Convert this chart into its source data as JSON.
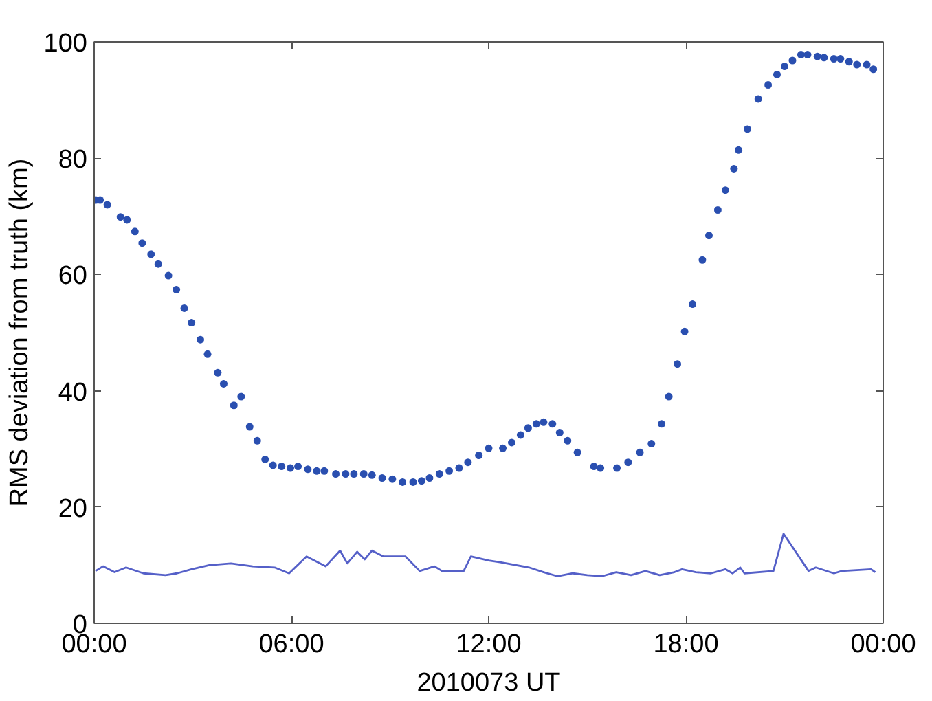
{
  "chart_data": {
    "type": "line",
    "xlabel": "2010073 UT",
    "ylabel": "RMS deviation from truth (km)",
    "xlim": [
      0,
      24
    ],
    "ylim": [
      0,
      100
    ],
    "xticks": [
      {
        "value": 0,
        "label": "00:00"
      },
      {
        "value": 6,
        "label": "06:00"
      },
      {
        "value": 12,
        "label": "12:00"
      },
      {
        "value": 18,
        "label": "18:00"
      },
      {
        "value": 24,
        "label": "00:00"
      }
    ],
    "yticks": [
      0,
      20,
      40,
      60,
      80,
      100
    ],
    "grid": false,
    "series": [
      {
        "type": "scatter",
        "marker": "circle",
        "color": "#2a4fb0",
        "x": [
          0.05,
          0.18,
          0.4,
          0.8,
          1.0,
          1.24,
          1.46,
          1.73,
          1.95,
          2.26,
          2.5,
          2.74,
          2.96,
          3.23,
          3.45,
          3.76,
          3.94,
          4.25,
          4.47,
          4.73,
          4.96,
          5.2,
          5.44,
          5.7,
          5.97,
          6.2,
          6.5,
          6.77,
          7.0,
          7.35,
          7.65,
          7.9,
          8.2,
          8.45,
          8.76,
          9.07,
          9.38,
          9.7,
          9.96,
          10.2,
          10.5,
          10.8,
          11.1,
          11.37,
          11.7,
          12.0,
          12.43,
          12.7,
          12.97,
          13.2,
          13.45,
          13.67,
          13.94,
          14.16,
          14.4,
          14.7,
          15.2,
          15.4,
          15.9,
          16.24,
          16.6,
          16.95,
          17.26,
          17.48,
          17.74,
          17.96,
          18.2,
          18.5,
          18.7,
          18.97,
          19.2,
          19.46,
          19.6,
          19.87,
          20.2,
          20.5,
          20.77,
          21.0,
          21.24,
          21.5,
          21.7,
          22.0,
          22.2,
          22.5,
          22.7,
          22.96,
          23.2,
          23.5,
          23.7
        ],
        "values": [
          72.8,
          72.8,
          72,
          69.9,
          69.4,
          67.4,
          65.4,
          63.5,
          61.8,
          59.8,
          57.4,
          54.2,
          51.7,
          48.8,
          46.3,
          43.1,
          41.2,
          37.5,
          39,
          33.8,
          31.4,
          28.2,
          27.2,
          27,
          26.7,
          27,
          26.5,
          26.2,
          26.2,
          25.7,
          25.7,
          25.7,
          25.7,
          25.5,
          25,
          24.8,
          24.3,
          24.3,
          24.5,
          25,
          25.7,
          26.2,
          26.7,
          27.7,
          28.9,
          30.1,
          30.1,
          31.1,
          32.4,
          33.6,
          34.3,
          34.6,
          34.3,
          32.8,
          31.4,
          29.4,
          27,
          26.7,
          26.7,
          27.7,
          29.4,
          30.9,
          34.3,
          39,
          44.6,
          50.2,
          54.9,
          62.5,
          66.7,
          71.1,
          74.5,
          78.2,
          81.4,
          85,
          90.2,
          92.6,
          94.4,
          95.8,
          96.8,
          97.8,
          97.8,
          97.5,
          97.3,
          97.1,
          97.1,
          96.6,
          96.1,
          96.1,
          95.3
        ]
      },
      {
        "line_style": "solid",
        "color": "#5560c8",
        "x": [
          0.04,
          0.27,
          0.62,
          0.97,
          1.5,
          2.17,
          2.52,
          2.96,
          3.5,
          4.16,
          4.82,
          5.49,
          5.93,
          6.46,
          7.04,
          7.48,
          7.7,
          8.0,
          8.23,
          8.45,
          8.8,
          9.47,
          9.9,
          10.35,
          10.58,
          11.24,
          11.46,
          12.0,
          12.35,
          13.23,
          13.67,
          14.1,
          14.56,
          15.0,
          15.44,
          15.88,
          16.33,
          16.77,
          17.2,
          17.65,
          17.88,
          18.3,
          18.76,
          19.2,
          19.42,
          19.65,
          19.78,
          20.66,
          20.97,
          21.73,
          21.95,
          22.5,
          22.74,
          23.63,
          23.76
        ],
        "values": [
          9,
          9.8,
          8.8,
          9.6,
          8.6,
          8.3,
          8.6,
          9.3,
          10,
          10.3,
          9.8,
          9.6,
          8.6,
          11.5,
          9.8,
          12.5,
          10.3,
          12.3,
          11,
          12.5,
          11.5,
          11.5,
          9,
          9.8,
          9,
          9,
          11.5,
          10.8,
          10.5,
          9.6,
          8.8,
          8.1,
          8.6,
          8.3,
          8.1,
          8.8,
          8.3,
          9,
          8.3,
          8.8,
          9.3,
          8.8,
          8.6,
          9.3,
          8.6,
          9.6,
          8.6,
          9,
          15.4,
          9,
          9.6,
          8.6,
          9,
          9.3,
          8.8
        ]
      }
    ]
  }
}
